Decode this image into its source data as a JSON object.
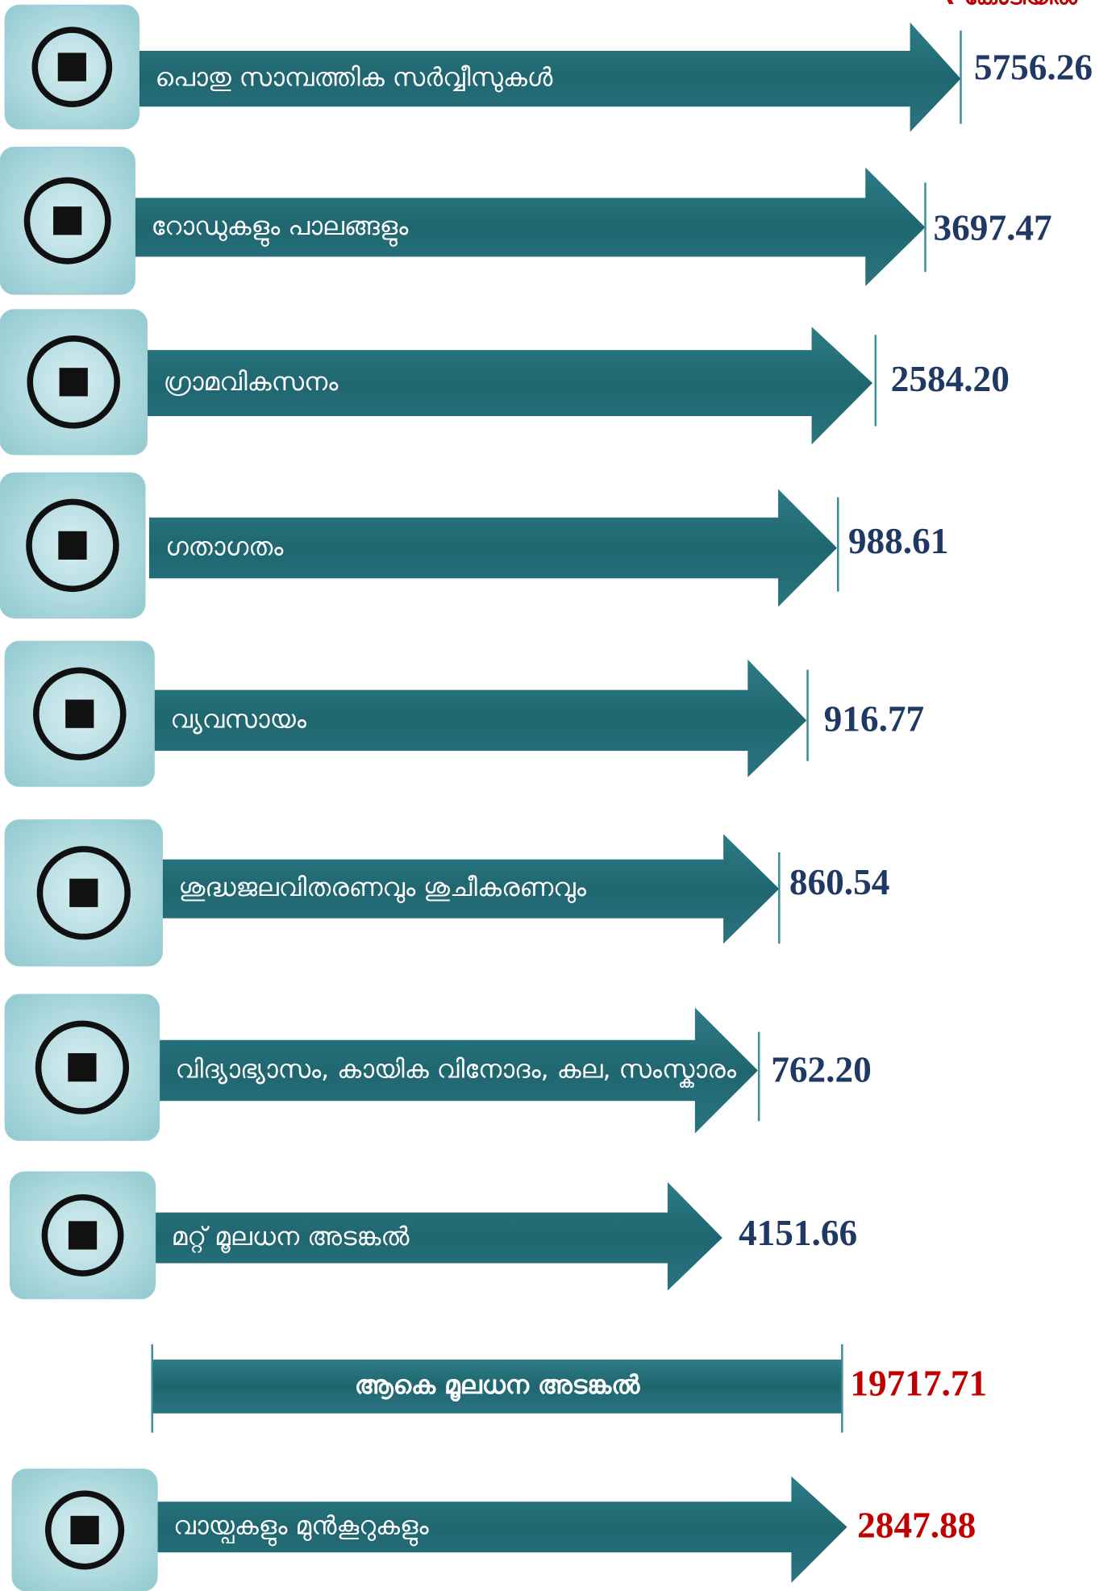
{
  "unit_label": "₹ കോടിയിൽ",
  "items": [
    {
      "label": "പൊതു സാമ്പത്തിക സർവ്വീസുകൾ",
      "value": "5756.26"
    },
    {
      "label": "റോഡുകളും പാലങ്ങളും",
      "value": "3697.47"
    },
    {
      "label": "ഗ്രാമവികസനം",
      "value": "2584.20"
    },
    {
      "label": "ഗതാഗതം",
      "value": "988.61"
    },
    {
      "label": "വ്യവസായം",
      "value": "916.77"
    },
    {
      "label": "ശുദ്ധജലവിതരണവും ശുചീകരണവും",
      "value": "860.54"
    },
    {
      "label": "വിദ്യാഭ്യാസം, കായിക വിനോദം, കല, സംസ്കാരം",
      "value": "762.20"
    },
    {
      "label": "മറ്റ് മൂലധന അടങ്കൽ",
      "value": "4151.66"
    }
  ],
  "total": {
    "label": "ആകെ മൂലധന അടങ്കൽ",
    "value": "19717.71"
  },
  "loans": {
    "label": "വായ്പകളും മുൻകൂറുകളും",
    "value": "2847.88"
  }
}
